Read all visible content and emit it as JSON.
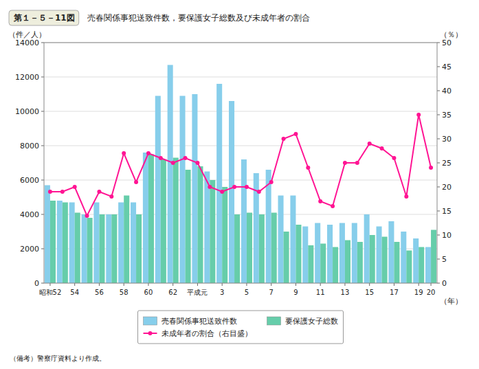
{
  "chart_data": {
    "type": "bar",
    "title": "第１－５－11図",
    "subtitle": "売春関係事犯送致件数，要保護女子総数及び未成年者の割合",
    "y_label": "（件／人）",
    "y2_label": "（％）",
    "x_label": "（年）",
    "annotations": [
      "（備考）警察庁資料より作成。"
    ],
    "categories": [
      "昭和52",
      null,
      "54",
      null,
      "56",
      null,
      "58",
      null,
      "60",
      null,
      "62",
      null,
      "平成元",
      null,
      "3",
      null,
      "5",
      null,
      "7",
      null,
      "9",
      null,
      "11",
      null,
      "13",
      null,
      "15",
      null,
      "17",
      null,
      "19",
      "20"
    ],
    "series": [
      {
        "name": "売春関係事犯送致件数",
        "type": "bar",
        "color": "#87CEEB",
        "values": [
          5700,
          4800,
          4700,
          4000,
          4700,
          4000,
          4700,
          4700,
          7600,
          10900,
          12700,
          10900,
          11000,
          6500,
          11600,
          10600,
          7200,
          6400,
          6600,
          5100,
          5100,
          3300,
          3500,
          3400,
          3500,
          3500,
          4000,
          3300,
          3600,
          3000,
          2600,
          2100
        ]
      },
      {
        "name": "要保護女子総数",
        "type": "bar",
        "color": "#66CDAA",
        "values": [
          4800,
          4700,
          4100,
          3800,
          4000,
          4000,
          5100,
          4000,
          7500,
          7200,
          7300,
          6600,
          6800,
          6000,
          5600,
          4000,
          4100,
          4000,
          4100,
          3000,
          3400,
          2200,
          2300,
          2100,
          2500,
          2400,
          2800,
          2700,
          2400,
          1900,
          2100,
          3100
        ]
      },
      {
        "name": "未成年者の割合（右目盛）",
        "type": "line",
        "axis": "y2",
        "color": "#FF1493",
        "marker": "circle",
        "line_style": "solid",
        "values": [
          19,
          19,
          20,
          14,
          19,
          18,
          27,
          21,
          27,
          26,
          25,
          26,
          25,
          20,
          19,
          20,
          20,
          19,
          21,
          30,
          31,
          24,
          17,
          16,
          25,
          25,
          29,
          28,
          26,
          18,
          35,
          24
        ]
      }
    ],
    "ylim": [
      0,
      14000
    ],
    "yticks": [
      0,
      2000,
      4000,
      6000,
      8000,
      10000,
      12000,
      14000
    ],
    "y2lim": [
      0,
      50
    ],
    "y2ticks": [
      0,
      5,
      10,
      15,
      20,
      25,
      30,
      35,
      40,
      45,
      50
    ],
    "grid": true,
    "legend": "bottom"
  }
}
